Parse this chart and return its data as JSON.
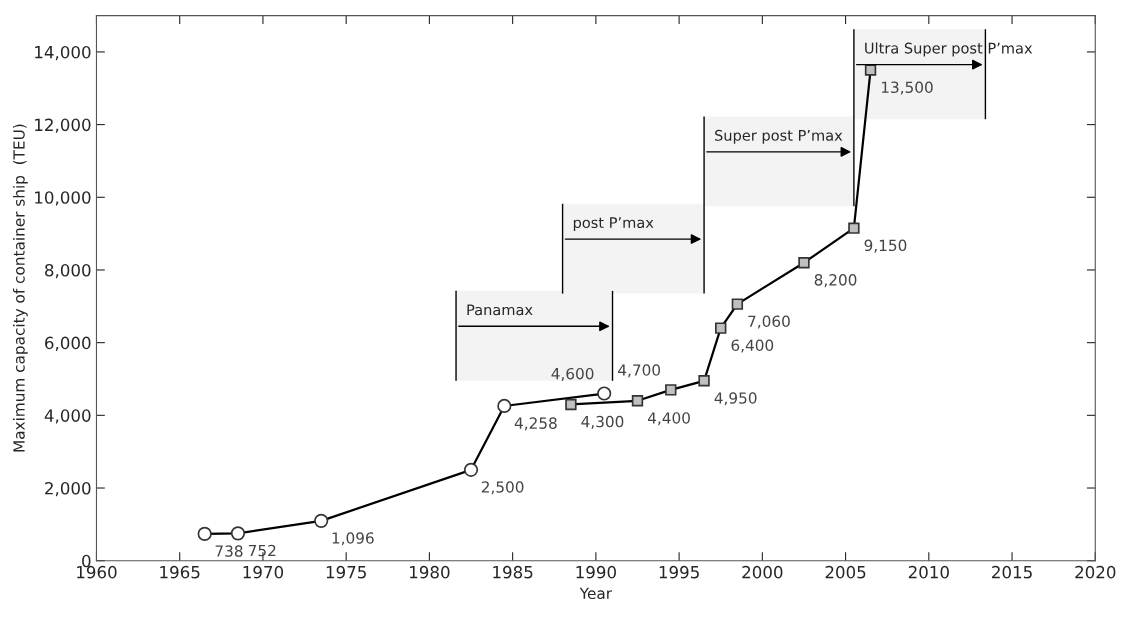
{
  "chart_data": {
    "type": "line",
    "xlabel": "Year",
    "ylabel": "Maximum capacity of container ship  (TEU)",
    "xlim": [
      1960,
      2020
    ],
    "xticks": [
      1960,
      1965,
      1970,
      1975,
      1980,
      1985,
      1990,
      1995,
      2000,
      2005,
      2010,
      2015,
      2020
    ],
    "ylim": [
      0,
      15000
    ],
    "yticks": [
      0,
      {
        "value": 2000,
        "label": "2,000"
      },
      {
        "value": 4000,
        "label": "4,000"
      },
      {
        "value": 6000,
        "label": "6,000"
      },
      {
        "value": 8000,
        "label": "8,000"
      },
      {
        "value": 10000,
        "label": "10,000"
      },
      {
        "value": 12000,
        "label": "12,000"
      },
      {
        "value": 14000,
        "label": "14,000"
      }
    ],
    "grid": false,
    "legend": false,
    "line_style": "solid",
    "series": [
      {
        "color": "#ffffff",
        "marker": "circle",
        "x": [
          1966.5,
          1968.5,
          1973.5,
          1982.5,
          1984.5,
          1990.5
        ],
        "values": [
          738,
          752,
          1096,
          2500,
          4258,
          4600
        ],
        "value_labels": [
          "738",
          "752",
          "1,096",
          "2,500",
          "4,258",
          "4,600"
        ]
      },
      {
        "color": "#c0c0c0",
        "marker": "square",
        "x": [
          1988.5,
          1992.5,
          1994.5,
          1996.5,
          1997.5,
          1998.5,
          2002.5,
          2005.5,
          2006.5
        ],
        "values": [
          4300,
          4400,
          4700,
          4950,
          6400,
          7060,
          8200,
          9150,
          13500
        ],
        "value_labels": [
          "4,300",
          "4,400",
          "4,700",
          "4,950",
          "6,400",
          "7,060",
          "8,200",
          "9,150",
          "13,500"
        ]
      }
    ],
    "bands": [
      {
        "axis": "x",
        "from": 1981.6,
        "to": 1991,
        "label": "Panamax",
        "color": "#f3f3f3"
      },
      {
        "axis": "x",
        "from": 1988,
        "to": 1996.5,
        "label": "post P’max",
        "color": "#f3f3f3"
      },
      {
        "axis": "x",
        "from": 1996.5,
        "to": 2005.5,
        "label": "Super post P’max",
        "color": "#f3f3f3"
      },
      {
        "axis": "x",
        "from": 2005.5,
        "to": 2013.4,
        "label": "Ultra Super post P’max",
        "color": "#f3f3f3"
      }
    ]
  }
}
